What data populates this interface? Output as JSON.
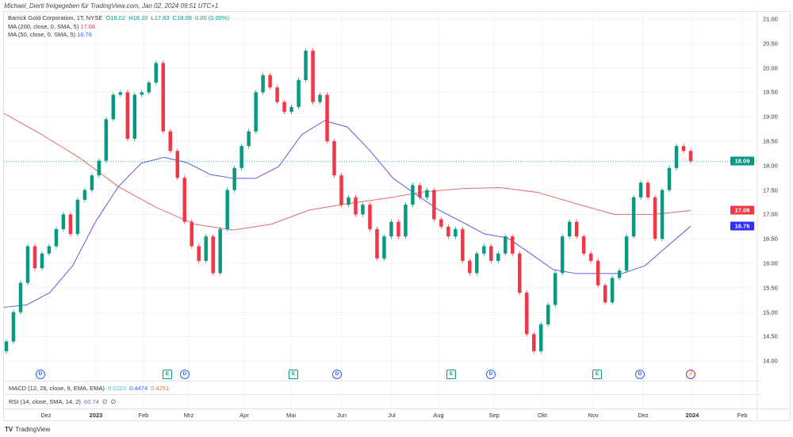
{
  "header": {
    "published": "Michael_Dierti freigegeben für TradingView.com, Jan 02, 2024 09:51 UTC+1"
  },
  "legend": {
    "symbol": "Barrick Gold Corporation, 1T, NYSE",
    "o": "O18.02",
    "h": "H18.10",
    "l": "L17.83",
    "c": "C18.09",
    "chg": "0.00 (0.00%)",
    "ma200_label": "MA (200, close, 0, SMA, 5)",
    "ma200_value": "17.08",
    "ma50_label": "MA (50, close, 0, SMA, 5)",
    "ma50_value": "16.76"
  },
  "macd": {
    "label": "MACD (12, 26, close, 9, EMA, EMA)",
    "v1": "0.0223",
    "v2": "0.4474",
    "v3": "0.4251"
  },
  "rsi": {
    "label": "RSI (14, close, SMA, 14, 2)",
    "v1": "60.74",
    "v2": "∅",
    "v3": "∅"
  },
  "price_axis": {
    "ticks": [
      "21.00",
      "20.50",
      "20.00",
      "19.50",
      "19.00",
      "18.50",
      "18.00",
      "17.50",
      "17.00",
      "16.50",
      "16.00",
      "15.50",
      "15.00",
      "14.50",
      "14.00"
    ]
  },
  "price_tags": {
    "last": "18.09",
    "ma200": "17.08",
    "ma50": "16.76"
  },
  "time_axis": [
    {
      "label": "Dez",
      "bold": false
    },
    {
      "label": "2023",
      "bold": true
    },
    {
      "label": "Feb",
      "bold": false
    },
    {
      "label": "Mrz",
      "bold": false
    },
    {
      "label": "Apr",
      "bold": false
    },
    {
      "label": "Mai",
      "bold": false
    },
    {
      "label": "Jun",
      "bold": false
    },
    {
      "label": "Jul",
      "bold": false
    },
    {
      "label": "Aug",
      "bold": false
    },
    {
      "label": "Sep",
      "bold": false
    },
    {
      "label": "Okt",
      "bold": false
    },
    {
      "label": "Nov",
      "bold": false
    },
    {
      "label": "Dez",
      "bold": false
    },
    {
      "label": "2024",
      "bold": true
    },
    {
      "label": "Feb",
      "bold": false
    }
  ],
  "events": [
    {
      "type": "D",
      "label": "D"
    },
    {
      "type": "E",
      "label": "E"
    },
    {
      "type": "D",
      "label": "D"
    },
    {
      "type": "E",
      "label": "E"
    },
    {
      "type": "D",
      "label": "D"
    },
    {
      "type": "E",
      "label": "E"
    },
    {
      "type": "D",
      "label": "D"
    },
    {
      "type": "E",
      "label": "E"
    },
    {
      "type": "D",
      "label": "D"
    },
    {
      "type": "S",
      "label": "⚡"
    }
  ],
  "colors": {
    "up": "#089981",
    "down": "#f23645",
    "ma200": "#f23645",
    "ma50": "#5b5bd6",
    "last": "#089981",
    "ma50_tag": "#2f2fff"
  },
  "brand": "TradingView",
  "chart_data": {
    "type": "candlestick",
    "ylim": [
      13.8,
      21.2
    ],
    "closes": [
      14.4,
      15.0,
      15.6,
      16.35,
      15.9,
      16.2,
      16.35,
      16.7,
      17.0,
      16.6,
      17.3,
      17.5,
      17.8,
      18.1,
      18.95,
      19.45,
      19.5,
      18.55,
      19.45,
      19.5,
      19.7,
      20.1,
      18.7,
      18.3,
      17.75,
      16.85,
      16.35,
      16.05,
      16.55,
      15.8,
      16.7,
      17.5,
      17.95,
      18.4,
      18.7,
      19.5,
      19.85,
      19.6,
      19.3,
      19.1,
      19.2,
      19.75,
      20.35,
      19.3,
      19.45,
      18.5,
      17.8,
      17.2,
      17.35,
      17.0,
      17.2,
      16.7,
      16.1,
      16.55,
      16.85,
      16.55,
      17.2,
      17.6,
      17.35,
      17.5,
      16.9,
      16.75,
      16.55,
      16.7,
      16.05,
      15.8,
      16.2,
      16.35,
      16.05,
      16.2,
      16.55,
      16.2,
      15.4,
      14.55,
      14.2,
      14.75,
      15.15,
      15.8,
      16.55,
      16.85,
      16.55,
      16.2,
      16.05,
      15.55,
      15.2,
      15.7,
      15.85,
      16.55,
      17.35,
      17.65,
      17.35,
      16.5,
      17.5,
      17.95,
      18.4,
      18.3,
      18.09
    ],
    "ma200": [
      19.07,
      18.63,
      18.15,
      17.57,
      17.14,
      16.8,
      16.68,
      16.8,
      17.09,
      17.22,
      17.33,
      17.46,
      17.53,
      17.55,
      17.45,
      17.22,
      17.0,
      17.0,
      17.08
    ],
    "ma50": [
      15.1,
      15.15,
      15.4,
      15.95,
      16.85,
      17.57,
      18.05,
      18.17,
      18.06,
      17.82,
      17.74,
      17.74,
      17.98,
      18.63,
      18.92,
      18.79,
      18.3,
      17.74,
      17.41,
      17.09,
      16.85,
      16.6,
      16.52,
      16.2,
      15.87,
      15.79,
      15.79,
      15.79,
      15.95,
      16.36,
      16.76
    ],
    "last_price": 18.09
  }
}
